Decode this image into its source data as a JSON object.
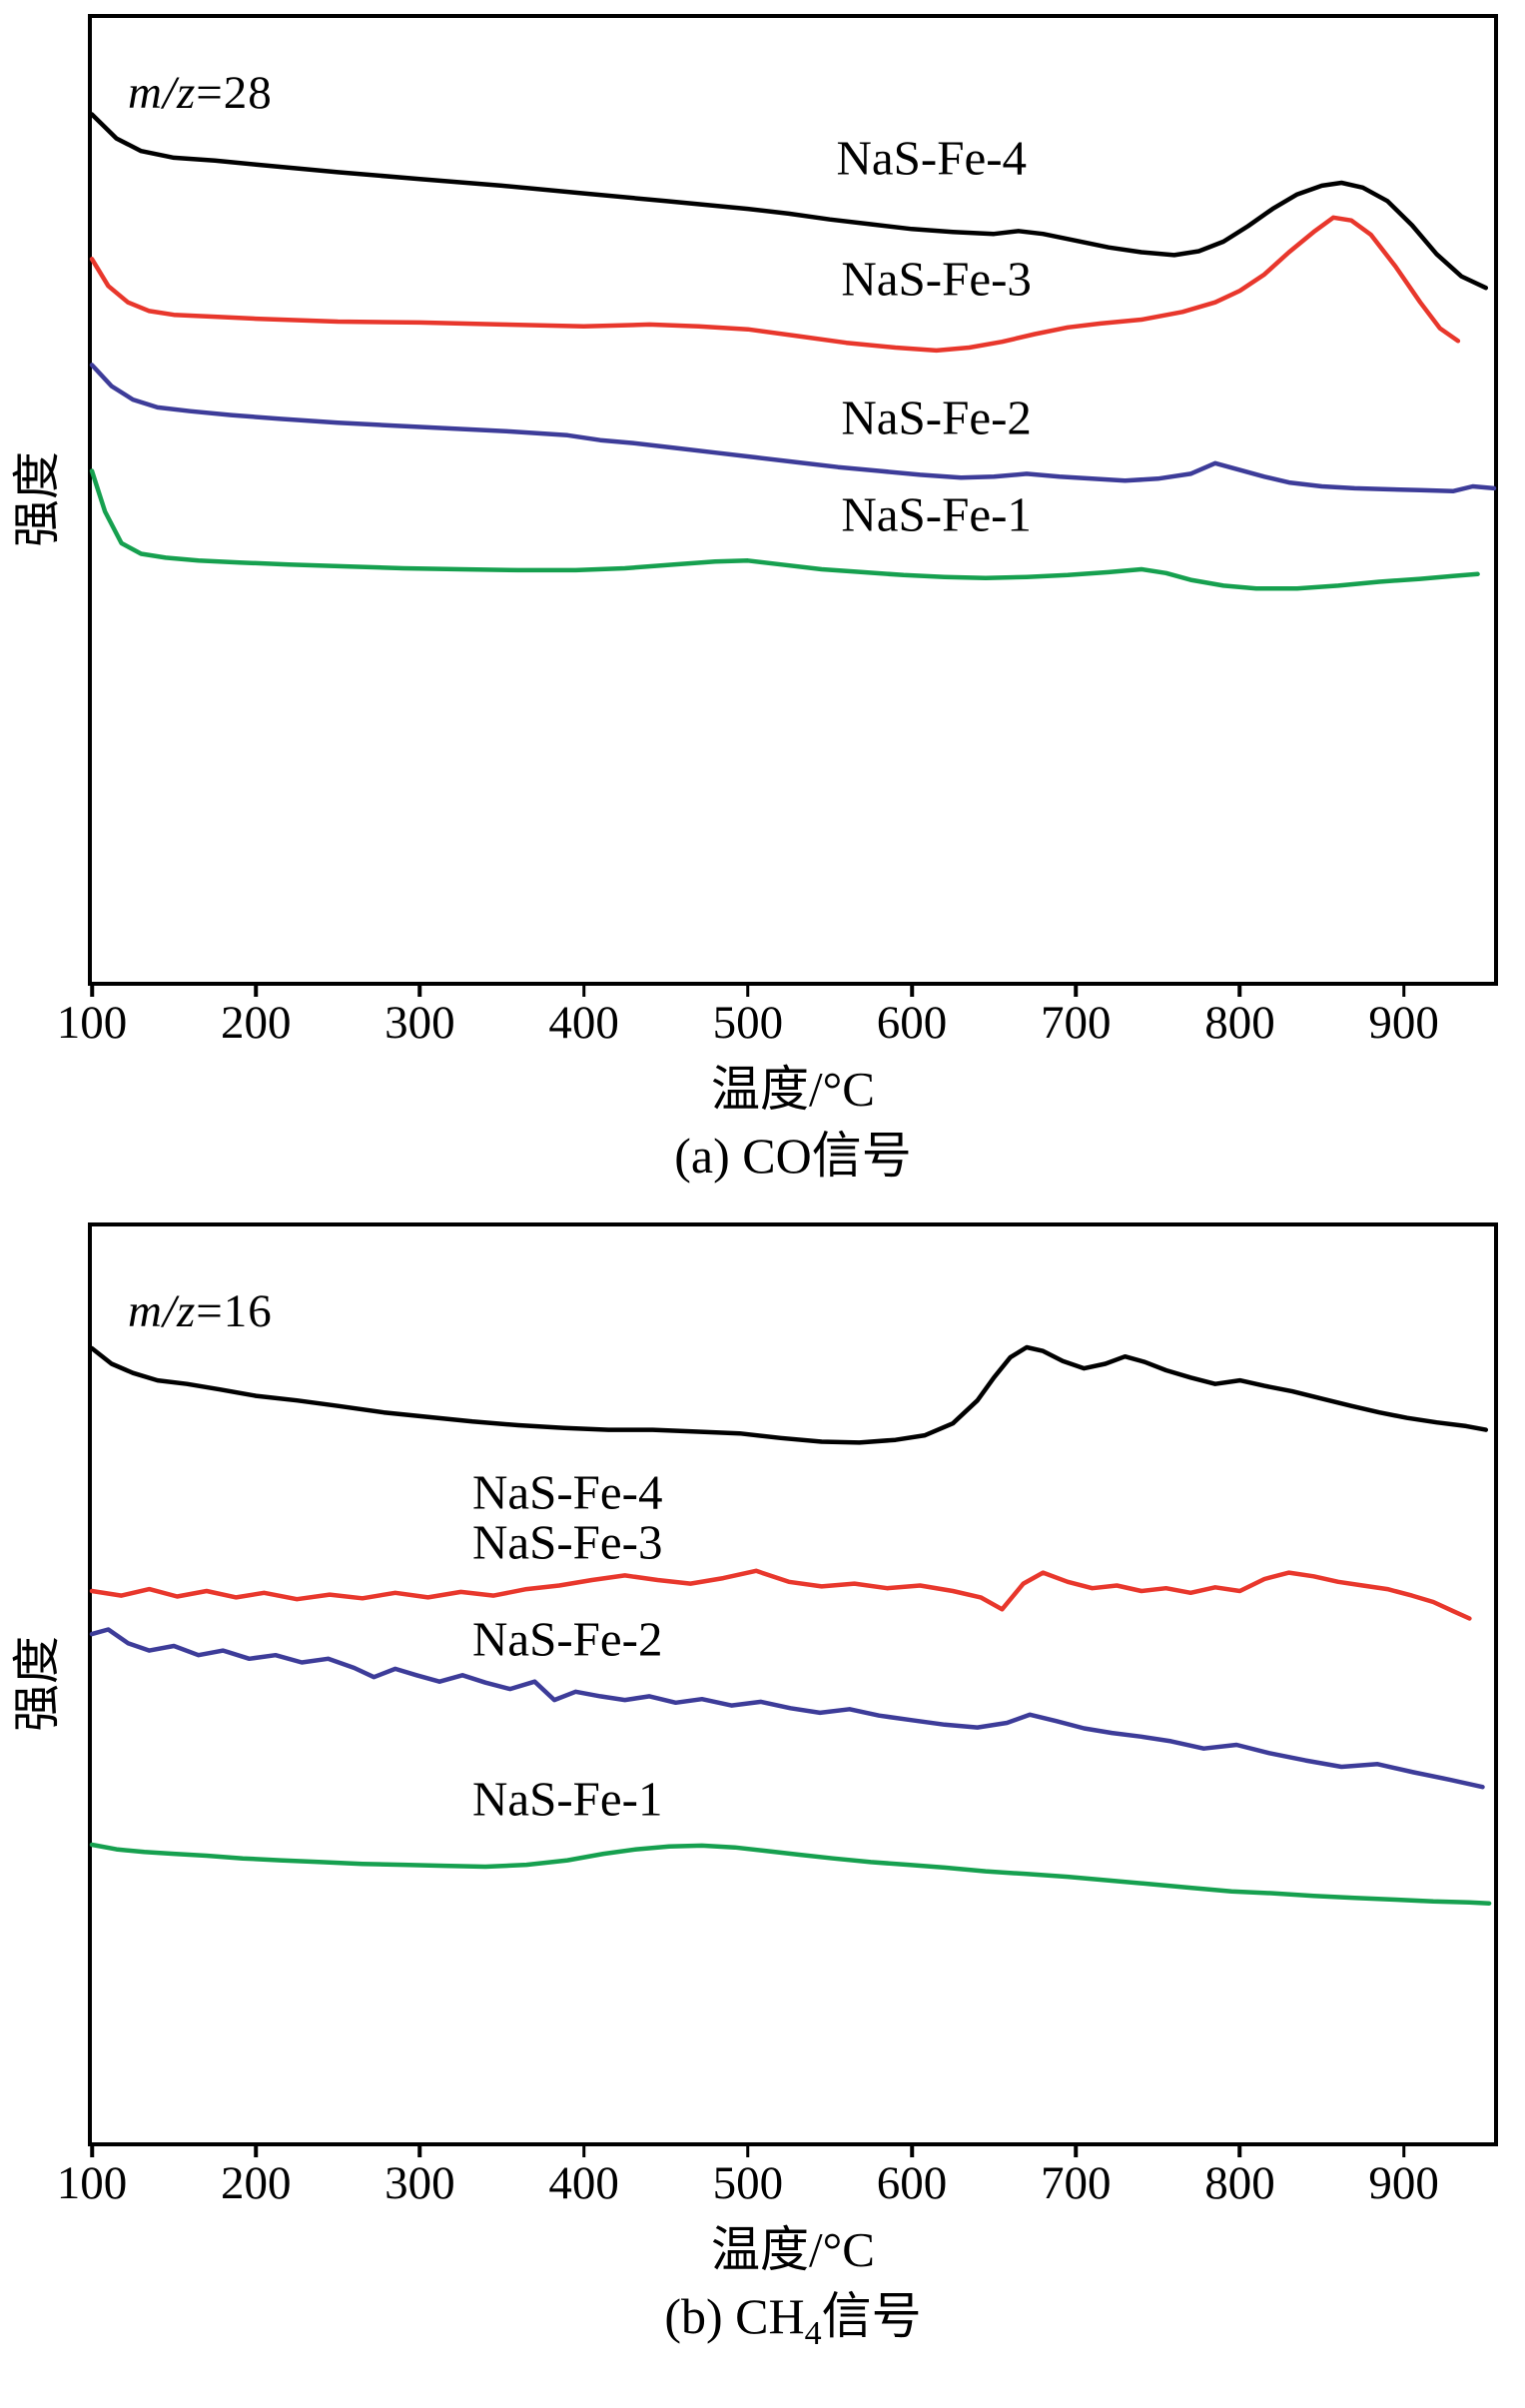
{
  "figure": {
    "description": "Two stacked mass-spectrometry signal vs temperature line charts with four offset curves each"
  },
  "chart_data": [
    {
      "id": "a",
      "type": "line",
      "annotation": {
        "italic": "m/z",
        "rest": "=28"
      },
      "xlabel": "温度/°C",
      "ylabel": "强度",
      "caption": {
        "prefix": "(a) CO信号",
        "sub": "",
        "suffix": ""
      },
      "x_range": [
        100,
        955
      ],
      "x_ticks": [
        100,
        200,
        300,
        400,
        500,
        600,
        700,
        800,
        900
      ],
      "ylim": [
        0,
        100
      ],
      "y_units": "intensity, arbitrary units; curves vertically offset",
      "grid": false,
      "legend_position": "labels-inline",
      "series": [
        {
          "name": "NaS-Fe-4",
          "color": "#000000",
          "label_pos": {
            "x": 612,
            "y": 85.5
          },
          "x": [
            100,
            115,
            130,
            150,
            175,
            200,
            250,
            300,
            350,
            400,
            450,
            500,
            525,
            550,
            575,
            600,
            625,
            650,
            665,
            680,
            700,
            720,
            740,
            760,
            775,
            790,
            805,
            820,
            835,
            850,
            862,
            875,
            890,
            905,
            920,
            935,
            950
          ],
          "values": [
            90.0,
            87.5,
            86.2,
            85.5,
            85.2,
            84.8,
            84.0,
            83.3,
            82.6,
            81.8,
            81.0,
            80.2,
            79.7,
            79.1,
            78.6,
            78.1,
            77.8,
            77.6,
            77.9,
            77.6,
            76.9,
            76.2,
            75.7,
            75.4,
            75.8,
            76.8,
            78.4,
            80.2,
            81.7,
            82.6,
            82.9,
            82.4,
            81.0,
            78.5,
            75.5,
            73.2,
            72.0
          ]
        },
        {
          "name": "NaS-Fe-3",
          "color": "#e8372c",
          "label_pos": {
            "x": 615,
            "y": 73
          },
          "x": [
            100,
            110,
            122,
            135,
            150,
            175,
            200,
            250,
            300,
            350,
            400,
            440,
            470,
            500,
            530,
            560,
            590,
            615,
            635,
            655,
            675,
            695,
            715,
            740,
            765,
            785,
            800,
            815,
            830,
            845,
            857,
            868,
            880,
            895,
            910,
            922,
            933
          ],
          "values": [
            75.0,
            72.2,
            70.5,
            69.6,
            69.2,
            69.0,
            68.8,
            68.5,
            68.4,
            68.2,
            68.0,
            68.2,
            68.0,
            67.7,
            67.0,
            66.3,
            65.8,
            65.5,
            65.8,
            66.4,
            67.2,
            67.9,
            68.3,
            68.7,
            69.5,
            70.5,
            71.7,
            73.4,
            75.7,
            77.8,
            79.3,
            79.0,
            77.5,
            74.2,
            70.5,
            67.8,
            66.5
          ]
        },
        {
          "name": "NaS-Fe-2",
          "color": "#3d3c99",
          "label_pos": {
            "x": 615,
            "y": 58.5
          },
          "x": [
            100,
            112,
            125,
            140,
            160,
            185,
            215,
            250,
            285,
            320,
            355,
            390,
            410,
            430,
            455,
            480,
            505,
            530,
            555,
            580,
            605,
            630,
            650,
            670,
            690,
            710,
            730,
            750,
            770,
            785,
            800,
            815,
            830,
            850,
            870,
            890,
            910,
            930,
            942,
            955
          ],
          "values": [
            64.0,
            61.8,
            60.4,
            59.6,
            59.2,
            58.8,
            58.4,
            58.0,
            57.7,
            57.4,
            57.1,
            56.7,
            56.2,
            55.9,
            55.4,
            54.9,
            54.4,
            53.9,
            53.4,
            53.0,
            52.6,
            52.3,
            52.4,
            52.7,
            52.4,
            52.2,
            52.0,
            52.2,
            52.7,
            53.8,
            53.1,
            52.4,
            51.8,
            51.4,
            51.2,
            51.1,
            51.0,
            50.9,
            51.4,
            51.2
          ]
        },
        {
          "name": "NaS-Fe-1",
          "color": "#16a04f",
          "label_pos": {
            "x": 615,
            "y": 48.5
          },
          "x": [
            100,
            108,
            118,
            130,
            145,
            165,
            190,
            220,
            255,
            290,
            325,
            360,
            395,
            425,
            455,
            480,
            500,
            520,
            545,
            570,
            595,
            620,
            645,
            670,
            695,
            720,
            740,
            755,
            770,
            790,
            810,
            835,
            860,
            885,
            910,
            930,
            945
          ],
          "values": [
            53.0,
            48.8,
            45.5,
            44.4,
            44.0,
            43.7,
            43.5,
            43.3,
            43.1,
            42.9,
            42.8,
            42.7,
            42.7,
            42.9,
            43.3,
            43.6,
            43.7,
            43.3,
            42.8,
            42.5,
            42.2,
            42.0,
            41.9,
            42.0,
            42.2,
            42.5,
            42.8,
            42.4,
            41.7,
            41.1,
            40.8,
            40.8,
            41.1,
            41.5,
            41.8,
            42.1,
            42.3
          ]
        }
      ]
    },
    {
      "id": "b",
      "type": "line",
      "annotation": {
        "italic": "m/z",
        "rest": "=16"
      },
      "xlabel": "温度/°C",
      "ylabel": "强度",
      "caption": {
        "prefix": "(b) CH",
        "sub": "4",
        "suffix": "信号"
      },
      "x_range": [
        100,
        955
      ],
      "x_ticks": [
        100,
        200,
        300,
        400,
        500,
        600,
        700,
        800,
        900
      ],
      "ylim": [
        0,
        100
      ],
      "y_units": "intensity, arbitrary units; curves vertically offset",
      "grid": false,
      "legend_position": "labels-inline",
      "series": [
        {
          "name": "NaS-Fe-4",
          "color": "#000000",
          "label_pos": {
            "x": 390,
            "y": 71
          },
          "x": [
            100,
            112,
            125,
            140,
            158,
            178,
            200,
            225,
            250,
            278,
            305,
            332,
            360,
            388,
            415,
            442,
            468,
            495,
            520,
            545,
            568,
            590,
            608,
            625,
            640,
            650,
            660,
            670,
            680,
            692,
            705,
            718,
            730,
            742,
            755,
            770,
            785,
            800,
            815,
            832,
            850,
            868,
            885,
            902,
            920,
            938,
            950
          ],
          "values": [
            86.7,
            85.0,
            84.0,
            83.2,
            82.8,
            82.2,
            81.5,
            81.0,
            80.4,
            79.7,
            79.2,
            78.7,
            78.3,
            78.0,
            77.8,
            77.8,
            77.6,
            77.4,
            76.9,
            76.5,
            76.4,
            76.7,
            77.2,
            78.5,
            81.0,
            83.5,
            85.7,
            86.8,
            86.4,
            85.3,
            84.5,
            85.0,
            85.8,
            85.2,
            84.3,
            83.5,
            82.8,
            83.2,
            82.6,
            82.0,
            81.2,
            80.4,
            79.7,
            79.1,
            78.6,
            78.2,
            77.8
          ]
        },
        {
          "name": "NaS-Fe-3",
          "color": "#e8372c",
          "label_pos": {
            "x": 390,
            "y": 65.5
          },
          "x": [
            100,
            118,
            135,
            152,
            170,
            188,
            205,
            225,
            245,
            265,
            285,
            305,
            325,
            345,
            365,
            385,
            405,
            425,
            445,
            465,
            485,
            505,
            525,
            545,
            565,
            585,
            605,
            625,
            642,
            655,
            668,
            680,
            695,
            710,
            725,
            740,
            755,
            770,
            785,
            800,
            815,
            830,
            845,
            860,
            875,
            890,
            905,
            918,
            930,
            940
          ],
          "values": [
            60.2,
            59.7,
            60.4,
            59.6,
            60.2,
            59.5,
            60.0,
            59.3,
            59.8,
            59.4,
            60.0,
            59.5,
            60.1,
            59.7,
            60.4,
            60.8,
            61.4,
            61.9,
            61.4,
            61.0,
            61.6,
            62.4,
            61.2,
            60.7,
            61.0,
            60.5,
            60.8,
            60.2,
            59.5,
            58.2,
            61.0,
            62.2,
            61.2,
            60.5,
            60.8,
            60.2,
            60.5,
            60.0,
            60.6,
            60.2,
            61.5,
            62.2,
            61.8,
            61.2,
            60.8,
            60.4,
            59.7,
            59.0,
            58.0,
            57.2
          ]
        },
        {
          "name": "NaS-Fe-2",
          "color": "#3d3c99",
          "label_pos": {
            "x": 390,
            "y": 55
          },
          "x": [
            100,
            110,
            122,
            135,
            150,
            165,
            180,
            196,
            212,
            228,
            244,
            260,
            272,
            285,
            298,
            312,
            326,
            340,
            355,
            370,
            382,
            395,
            410,
            425,
            440,
            456,
            472,
            490,
            508,
            526,
            544,
            562,
            580,
            600,
            620,
            640,
            658,
            672,
            688,
            705,
            722,
            740,
            758,
            778,
            798,
            818,
            840,
            862,
            884,
            906,
            928,
            948
          ],
          "values": [
            55.5,
            56.0,
            54.5,
            53.7,
            54.2,
            53.2,
            53.7,
            52.8,
            53.2,
            52.4,
            52.8,
            51.8,
            50.8,
            51.7,
            51.0,
            50.3,
            51.0,
            50.2,
            49.5,
            50.3,
            48.3,
            49.2,
            48.7,
            48.3,
            48.7,
            48.0,
            48.4,
            47.7,
            48.1,
            47.4,
            46.9,
            47.3,
            46.6,
            46.1,
            45.6,
            45.3,
            45.8,
            46.7,
            46.0,
            45.2,
            44.7,
            44.3,
            43.8,
            43.0,
            43.4,
            42.5,
            41.7,
            41.0,
            41.3,
            40.4,
            39.6,
            38.8
          ]
        },
        {
          "name": "NaS-Fe-1",
          "color": "#16a04f",
          "label_pos": {
            "x": 390,
            "y": 37.5
          },
          "x": [
            100,
            115,
            132,
            150,
            170,
            192,
            215,
            240,
            265,
            290,
            315,
            340,
            365,
            390,
            412,
            432,
            452,
            472,
            492,
            512,
            532,
            552,
            575,
            598,
            620,
            645,
            670,
            695,
            720,
            745,
            770,
            795,
            820,
            845,
            870,
            895,
            918,
            940,
            952
          ],
          "values": [
            32.5,
            32.0,
            31.7,
            31.5,
            31.3,
            31.0,
            30.8,
            30.6,
            30.4,
            30.3,
            30.2,
            30.1,
            30.3,
            30.8,
            31.5,
            32.0,
            32.3,
            32.4,
            32.2,
            31.8,
            31.4,
            31.0,
            30.6,
            30.3,
            30.0,
            29.6,
            29.3,
            29.0,
            28.6,
            28.2,
            27.8,
            27.4,
            27.2,
            26.9,
            26.7,
            26.5,
            26.3,
            26.2,
            26.1
          ]
        }
      ]
    }
  ]
}
